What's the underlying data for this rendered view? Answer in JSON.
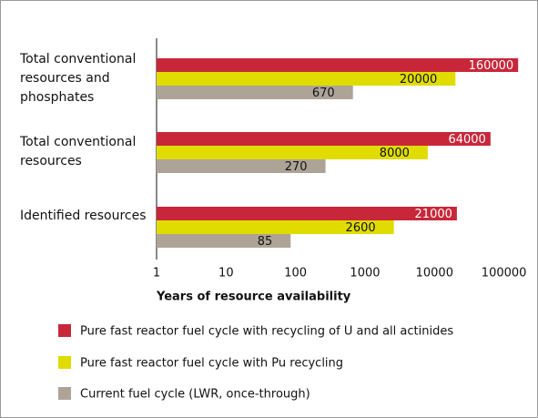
{
  "chart_data": {
    "type": "bar",
    "orientation": "horizontal",
    "log_scale": true,
    "categories": [
      "Total conventional resources and phosphates",
      "Total conventional resources",
      "Identified resources"
    ],
    "series": [
      {
        "name": "Pure fast reactor fuel cycle with recycling of U and all actinides",
        "color": "#c8273a",
        "values": [
          160000,
          64000,
          21000
        ]
      },
      {
        "name": "Pure fast reactor fuel cycle with Pu recycling",
        "color": "#e0dc00",
        "values": [
          20000,
          8000,
          2600
        ]
      },
      {
        "name": "Current fuel cycle (LWR, once-through)",
        "color": "#ada497",
        "values": [
          670,
          270,
          85
        ]
      }
    ],
    "x_label": "Years of resource availability",
    "xlim": [
      1,
      250000
    ],
    "xticks": [
      1,
      10,
      100,
      1000,
      10000,
      100000
    ],
    "grid": false
  }
}
